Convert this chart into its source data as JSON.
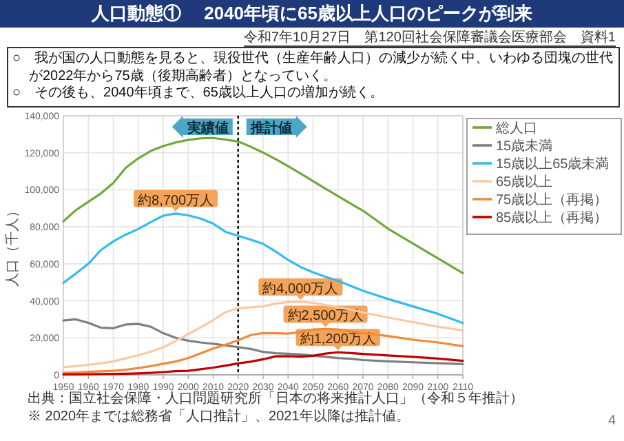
{
  "chart_data": {
    "type": "line",
    "title": "人口動態①　 2040年頃に65歳以上人口のピークが到来",
    "ylabel": "人口（千人）",
    "x": [
      1950,
      1955,
      1960,
      1965,
      1970,
      1975,
      1980,
      1985,
      1990,
      1995,
      2000,
      2005,
      2010,
      2015,
      2020,
      2025,
      2030,
      2035,
      2040,
      2045,
      2050,
      2055,
      2060,
      2065,
      2070,
      2080,
      2090,
      2100,
      2110
    ],
    "series": [
      {
        "name": "総人口",
        "color": "#70a83b",
        "values": [
          83000,
          89000,
          93500,
          98000,
          103700,
          111900,
          117000,
          121000,
          123600,
          125600,
          126900,
          127800,
          128000,
          127100,
          126100,
          123300,
          120100,
          116600,
          112800,
          108800,
          104700,
          100600,
          96600,
          92600,
          88700,
          79000,
          71000,
          63000,
          55000
        ]
      },
      {
        "name": "15歳未満",
        "color": "#7f7f7f",
        "values": [
          29400,
          30000,
          28100,
          25500,
          25200,
          27200,
          27500,
          26000,
          22500,
          20000,
          18500,
          17500,
          16800,
          15900,
          15000,
          14000,
          12400,
          11700,
          11400,
          11000,
          10400,
          9700,
          9100,
          8700,
          8000,
          7300,
          6800,
          6300,
          5800
        ]
      },
      {
        "name": "15歳以上65歳未満",
        "color": "#33bbf0",
        "values": [
          49700,
          54700,
          60000,
          67400,
          72100,
          75800,
          78800,
          82500,
          86000,
          87200,
          86200,
          84400,
          81700,
          77300,
          75100,
          73100,
          70800,
          66700,
          62100,
          58300,
          55400,
          53000,
          50800,
          48100,
          45400,
          41000,
          37000,
          33000,
          28000
        ]
      },
      {
        "name": "65歳以上",
        "color": "#f9c9a4",
        "values": [
          4100,
          4700,
          5400,
          6200,
          7300,
          8900,
          10600,
          12500,
          14900,
          18300,
          22000,
          25700,
          29500,
          33900,
          36000,
          36500,
          37000,
          38500,
          39300,
          39500,
          38900,
          37800,
          36400,
          35300,
          33700,
          31000,
          28500,
          26000,
          24000
        ]
      },
      {
        "name": "75歳以上（再掲）",
        "color": "#f08a3c",
        "values": [
          1100,
          1300,
          1600,
          1900,
          2200,
          2800,
          3700,
          4700,
          6000,
          7200,
          9000,
          11600,
          14200,
          16300,
          18600,
          21500,
          22600,
          22500,
          22300,
          23100,
          24500,
          24800,
          24500,
          23500,
          22600,
          21000,
          19000,
          17500,
          15500
        ]
      },
      {
        "name": "85歳以上（再掲）",
        "color": "#c00000",
        "values": [
          200,
          200,
          300,
          400,
          500,
          600,
          800,
          1100,
          1500,
          2000,
          2200,
          3000,
          3900,
          5000,
          6200,
          7100,
          8400,
          10000,
          10100,
          9800,
          10300,
          11500,
          12200,
          11800,
          11300,
          10500,
          9700,
          8800,
          7600
        ]
      }
    ],
    "xlim": [
      1950,
      2110
    ],
    "ylim": [
      0,
      140000
    ],
    "xticks": [
      1950,
      1960,
      1970,
      1980,
      1990,
      2000,
      2010,
      2020,
      2030,
      2040,
      2050,
      2060,
      2070,
      2080,
      2090,
      2100,
      2110
    ],
    "yticks": [
      0,
      {
        "value": 20000,
        "label": "20,000"
      },
      {
        "value": 40000,
        "label": "40,000"
      },
      {
        "value": 60000,
        "label": "60,000"
      },
      {
        "value": 80000,
        "label": "80,000"
      },
      {
        "value": 100000,
        "label": "100,000"
      },
      {
        "value": 120000,
        "label": "120,000"
      },
      {
        "value": 140000,
        "label": "140,000"
      }
    ],
    "grid": true,
    "legend": "right",
    "line_style": "solid",
    "ref_lines": [
      {
        "axis": "x",
        "value": 2020,
        "color": "#000000",
        "line_style": "dotted"
      }
    ],
    "annotations": [
      "令和7年10月27日　第120回社会保障審議会医療部会　資料1",
      "○　我が国の人口動態を見ると、現役世代（生産年齢人口）の減少が続く中、いわゆる団塊の世代が2022年から75歳（後期高齢者）となっていく。",
      "○　その後も、2040年頃まで、65歳以上人口の増加が続く。",
      "実績値",
      "推計値",
      {
        "text": "約8,700万人",
        "x": 1995,
        "y": 87200
      },
      {
        "text": "約4,000万人",
        "x": 2045,
        "y": 39500
      },
      {
        "text": "約2,500万人",
        "x": 2055,
        "y": 24800
      },
      {
        "text": "約1,200万人",
        "x": 2060,
        "y": 12200
      },
      "出典：国立社会保障・人口問題研究所「日本の将来推計人口」（令和５年推計）",
      "※ 2020年までは総務省「人口推計」、2021年以降は推計値。",
      "4"
    ]
  }
}
